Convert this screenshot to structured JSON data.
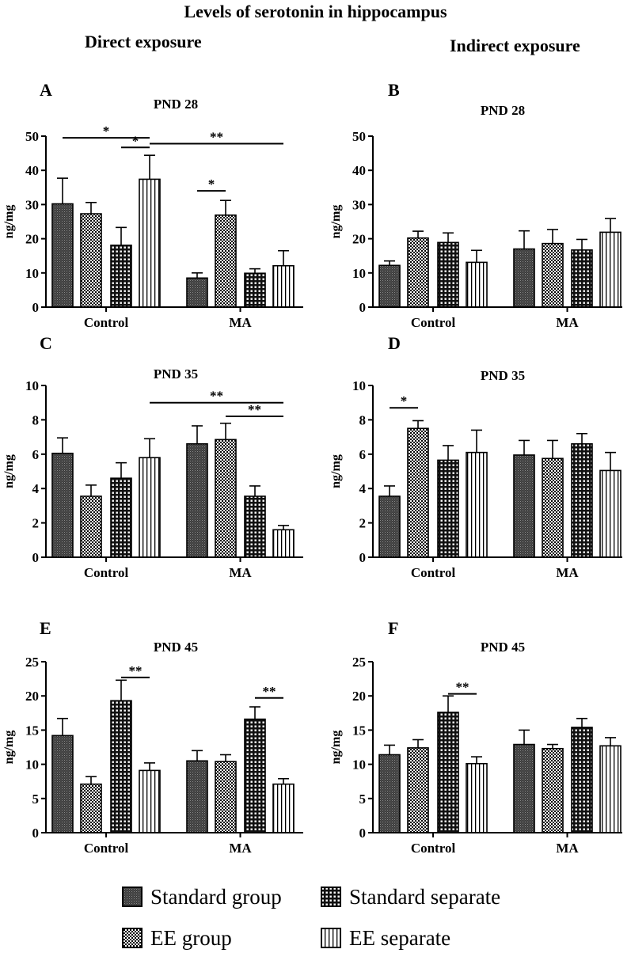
{
  "page": {
    "title": "Levels of serotonin in hippocampus",
    "direct_heading": "Direct exposure",
    "indirect_heading": "Indirect exposure"
  },
  "legend": {
    "items": [
      {
        "key": "standard_group",
        "label": "Standard group",
        "pattern": "pat-sg"
      },
      {
        "key": "standard_separate",
        "label": "Standard separate",
        "pattern": "pat-ss"
      },
      {
        "key": "ee_group",
        "label": "EE group",
        "pattern": "pat-eg"
      },
      {
        "key": "ee_separate",
        "label": "EE separate",
        "pattern": "pat-es"
      }
    ]
  },
  "chart_data": [
    {
      "panel": "A",
      "title": "PND 28",
      "type": "bar",
      "ylabel": "ng/mg",
      "ylim": [
        0,
        50
      ],
      "yticks": [
        0,
        10,
        20,
        30,
        40,
        50
      ],
      "categories": [
        "Control",
        "MA"
      ],
      "series": [
        {
          "name": "Standard group",
          "values": [
            30.2,
            8.5
          ],
          "errors": [
            7.5,
            1.5
          ]
        },
        {
          "name": "EE group",
          "values": [
            27.3,
            26.9
          ],
          "errors": [
            3.3,
            4.3
          ]
        },
        {
          "name": "Standard separate",
          "values": [
            18.1,
            9.9
          ],
          "errors": [
            5.2,
            1.3
          ]
        },
        {
          "name": "EE separate",
          "values": [
            37.4,
            12.1
          ],
          "errors": [
            7.0,
            4.4
          ]
        }
      ],
      "annotations": [
        {
          "label": "*",
          "from": [
            0,
            0
          ],
          "to": [
            0,
            3
          ],
          "yval": 49.5
        },
        {
          "label": "*",
          "from": [
            0,
            2
          ],
          "to": [
            0,
            3
          ],
          "yval": 46.7
        },
        {
          "label": "**",
          "from": [
            0,
            3
          ],
          "to": [
            1,
            3
          ],
          "yval": 47.8
        },
        {
          "label": "*",
          "from": [
            1,
            0
          ],
          "to": [
            1,
            1
          ],
          "yval": 34.0
        }
      ]
    },
    {
      "panel": "B",
      "title": "PND 28",
      "type": "bar",
      "ylabel": "ng/mg",
      "ylim": [
        0,
        50
      ],
      "yticks": [
        0,
        10,
        20,
        30,
        40,
        50
      ],
      "categories": [
        "Control",
        "MA"
      ],
      "series": [
        {
          "name": "Standard group",
          "values": [
            12.2,
            17.0
          ],
          "errors": [
            1.3,
            5.3
          ]
        },
        {
          "name": "EE group",
          "values": [
            20.2,
            18.6
          ],
          "errors": [
            2.0,
            4.1
          ]
        },
        {
          "name": "Standard separate",
          "values": [
            18.9,
            16.7
          ],
          "errors": [
            2.8,
            3.1
          ]
        },
        {
          "name": "EE separate",
          "values": [
            13.1,
            21.9
          ],
          "errors": [
            3.5,
            4.0
          ]
        }
      ],
      "annotations": []
    },
    {
      "panel": "C",
      "title": "PND 35",
      "type": "bar",
      "ylabel": "ng/mg",
      "ylim": [
        0,
        10
      ],
      "yticks": [
        0,
        2,
        4,
        6,
        8,
        10
      ],
      "categories": [
        "Control",
        "MA"
      ],
      "series": [
        {
          "name": "Standard group",
          "values": [
            6.05,
            6.6
          ],
          "errors": [
            0.9,
            1.05
          ]
        },
        {
          "name": "EE group",
          "values": [
            3.55,
            6.85
          ],
          "errors": [
            0.65,
            0.95
          ]
        },
        {
          "name": "Standard separate",
          "values": [
            4.6,
            3.55
          ],
          "errors": [
            0.9,
            0.6
          ]
        },
        {
          "name": "EE separate",
          "values": [
            5.8,
            1.6
          ],
          "errors": [
            1.1,
            0.25
          ]
        }
      ],
      "annotations": [
        {
          "label": "**",
          "from": [
            0,
            3
          ],
          "to": [
            1,
            3
          ],
          "yval": 9.0
        },
        {
          "label": "**",
          "from": [
            1,
            1
          ],
          "to": [
            1,
            3
          ],
          "yval": 8.2
        }
      ]
    },
    {
      "panel": "D",
      "title": "PND 35",
      "type": "bar",
      "ylabel": "ng/mg",
      "ylim": [
        0,
        10
      ],
      "yticks": [
        0,
        2,
        4,
        6,
        8,
        10
      ],
      "categories": [
        "Control",
        "MA"
      ],
      "series": [
        {
          "name": "Standard group",
          "values": [
            3.55,
            5.95
          ],
          "errors": [
            0.6,
            0.85
          ]
        },
        {
          "name": "EE group",
          "values": [
            7.5,
            5.75
          ],
          "errors": [
            0.45,
            1.05
          ]
        },
        {
          "name": "Standard separate",
          "values": [
            5.65,
            6.6
          ],
          "errors": [
            0.85,
            0.6
          ]
        },
        {
          "name": "EE separate",
          "values": [
            6.1,
            5.05
          ],
          "errors": [
            1.3,
            1.05
          ]
        }
      ],
      "annotations": [
        {
          "label": "*",
          "from": [
            0,
            0
          ],
          "to": [
            0,
            1
          ],
          "yval": 8.7
        }
      ]
    },
    {
      "panel": "E",
      "title": "PND 45",
      "type": "bar",
      "ylabel": "ng/mg",
      "ylim": [
        0,
        25
      ],
      "yticks": [
        0,
        5,
        10,
        15,
        20,
        25
      ],
      "categories": [
        "Control",
        "MA"
      ],
      "series": [
        {
          "name": "Standard group",
          "values": [
            14.2,
            10.5
          ],
          "errors": [
            2.5,
            1.5
          ]
        },
        {
          "name": "EE group",
          "values": [
            7.1,
            10.4
          ],
          "errors": [
            1.1,
            1.0
          ]
        },
        {
          "name": "Standard separate",
          "values": [
            19.3,
            16.6
          ],
          "errors": [
            3.0,
            1.8
          ]
        },
        {
          "name": "EE separate",
          "values": [
            9.1,
            7.1
          ],
          "errors": [
            1.1,
            0.8
          ]
        }
      ],
      "annotations": [
        {
          "label": "**",
          "from": [
            0,
            2
          ],
          "to": [
            0,
            3
          ],
          "yval": 22.7
        },
        {
          "label": "**",
          "from": [
            1,
            2
          ],
          "to": [
            1,
            3
          ],
          "yval": 19.7
        }
      ]
    },
    {
      "panel": "F",
      "title": "PND 45",
      "type": "bar",
      "ylabel": "ng/mg",
      "ylim": [
        0,
        25
      ],
      "yticks": [
        0,
        5,
        10,
        15,
        20,
        25
      ],
      "categories": [
        "Control",
        "MA"
      ],
      "series": [
        {
          "name": "Standard group",
          "values": [
            11.4,
            12.9
          ],
          "errors": [
            1.4,
            2.1
          ]
        },
        {
          "name": "EE group",
          "values": [
            12.4,
            12.3
          ],
          "errors": [
            1.2,
            0.6
          ]
        },
        {
          "name": "Standard separate",
          "values": [
            17.6,
            15.4
          ],
          "errors": [
            2.4,
            1.3
          ]
        },
        {
          "name": "EE separate",
          "values": [
            10.1,
            12.7
          ],
          "errors": [
            1.0,
            1.2
          ]
        }
      ],
      "annotations": [
        {
          "label": "**",
          "from": [
            0,
            2
          ],
          "to": [
            0,
            3
          ],
          "yval": 20.3
        }
      ]
    }
  ]
}
